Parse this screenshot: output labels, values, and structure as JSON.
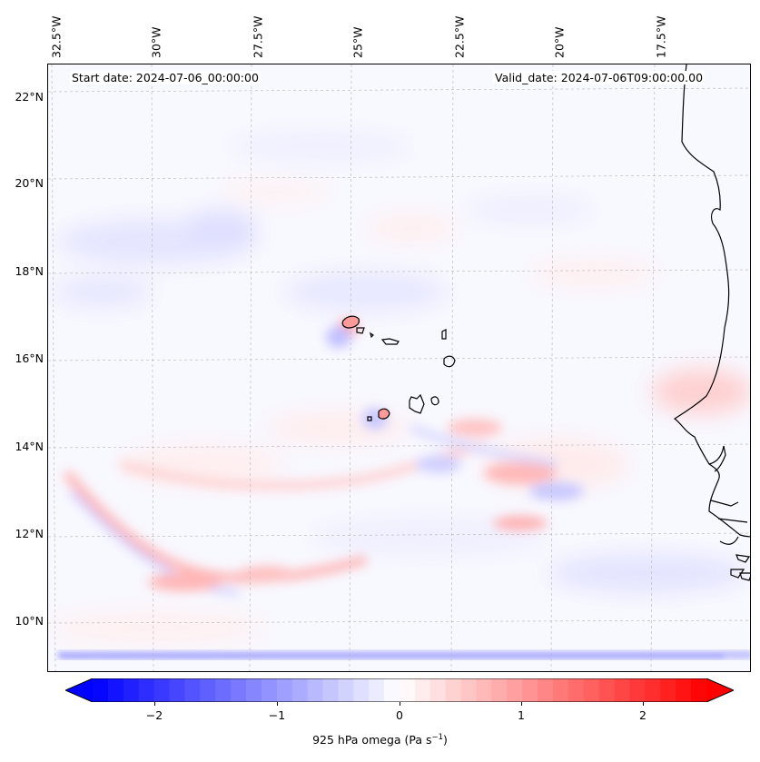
{
  "map": {
    "lon_labels": [
      "32.5°W",
      "30°W",
      "27.5°W",
      "25°W",
      "22.5°W",
      "20°W",
      "17.5°W"
    ],
    "lat_labels": [
      "22°N",
      "20°N",
      "18°N",
      "16°N",
      "14°N",
      "12°N",
      "10°N"
    ],
    "start_date": "Start date: 2024-07-06_00:00:00",
    "valid_date": "Valid_date: 2024-07-06T09:00:00.00",
    "colors": {
      "positive": "#ff0000",
      "negative": "#0000ff",
      "neutral": "#ffffff",
      "coastline": "#000000"
    },
    "gridlines": "dashed",
    "features": [
      "Cape Verde islands",
      "West African coastline"
    ]
  },
  "colorbar": {
    "ticks": [
      "−2",
      "−1",
      "0",
      "1",
      "2"
    ],
    "tick_values": [
      -2,
      -1,
      0,
      1,
      2
    ],
    "range": [
      -2.6,
      2.6
    ],
    "extend": "both",
    "colormap": "bwr",
    "label_main": "925 hPa omega (Pa s",
    "label_sup": "−1",
    "label_close": ")"
  }
}
